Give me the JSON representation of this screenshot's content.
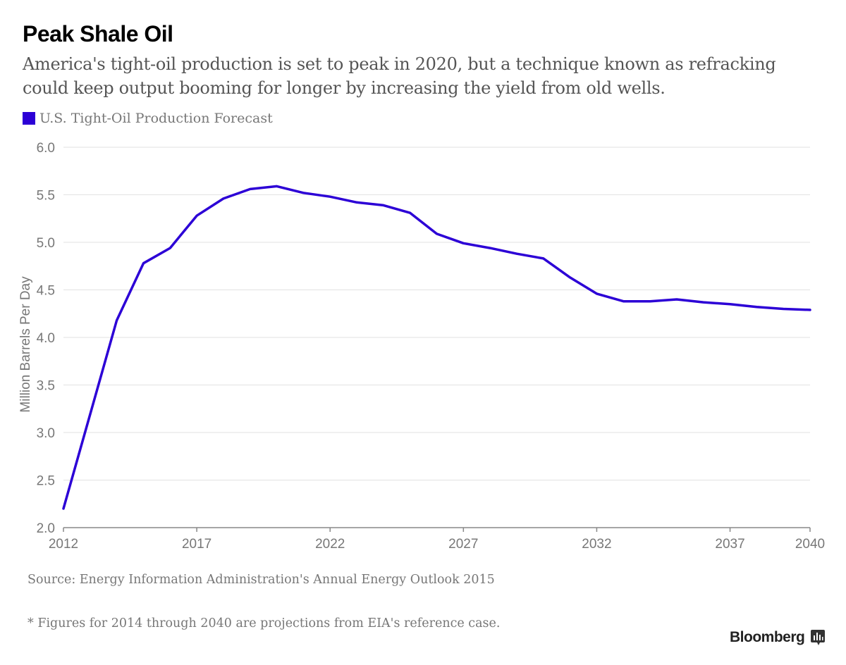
{
  "title": "Peak Shale Oil",
  "subtitle": "America's tight-oil production is set to peak in 2020, but a technique known as refracking could keep output booming for longer by increasing the yield from old wells.",
  "legend_label": "U.S. Tight-Oil Production Forecast",
  "source": "Source: Energy Information Administration's Annual Energy Outlook 2015",
  "footnote": "* Figures for 2014 through 2040 are projections from EIA's reference case.",
  "brand": "Bloomberg",
  "colors": {
    "series": "#2c00d6",
    "grid": "#e2e2e2",
    "axis": "#888888",
    "tick_text": "#777777"
  },
  "chart_data": {
    "type": "line",
    "ylabel": "Million Barrels Per Day",
    "xlabel": "",
    "xlim": [
      2012,
      2040
    ],
    "ylim": [
      2.0,
      6.0
    ],
    "x_ticks": [
      2012,
      2017,
      2022,
      2027,
      2032,
      2037,
      2040
    ],
    "y_ticks": [
      "2.0",
      "2.5",
      "3.0",
      "3.5",
      "4.0",
      "4.5",
      "5.0",
      "5.5",
      "6.0"
    ],
    "grid": true,
    "series": [
      {
        "name": "U.S. Tight-Oil Production Forecast",
        "x": [
          2012,
          2013,
          2014,
          2015,
          2016,
          2017,
          2018,
          2019,
          2020,
          2021,
          2022,
          2023,
          2024,
          2025,
          2026,
          2027,
          2028,
          2029,
          2030,
          2031,
          2032,
          2033,
          2034,
          2035,
          2036,
          2037,
          2038,
          2039,
          2040
        ],
        "values": [
          2.2,
          3.19,
          4.18,
          4.78,
          4.94,
          5.28,
          5.46,
          5.56,
          5.59,
          5.52,
          5.48,
          5.42,
          5.39,
          5.31,
          5.09,
          4.99,
          4.94,
          4.88,
          4.83,
          4.63,
          4.46,
          4.38,
          4.38,
          4.4,
          4.37,
          4.35,
          4.32,
          4.3,
          4.29
        ]
      }
    ]
  }
}
